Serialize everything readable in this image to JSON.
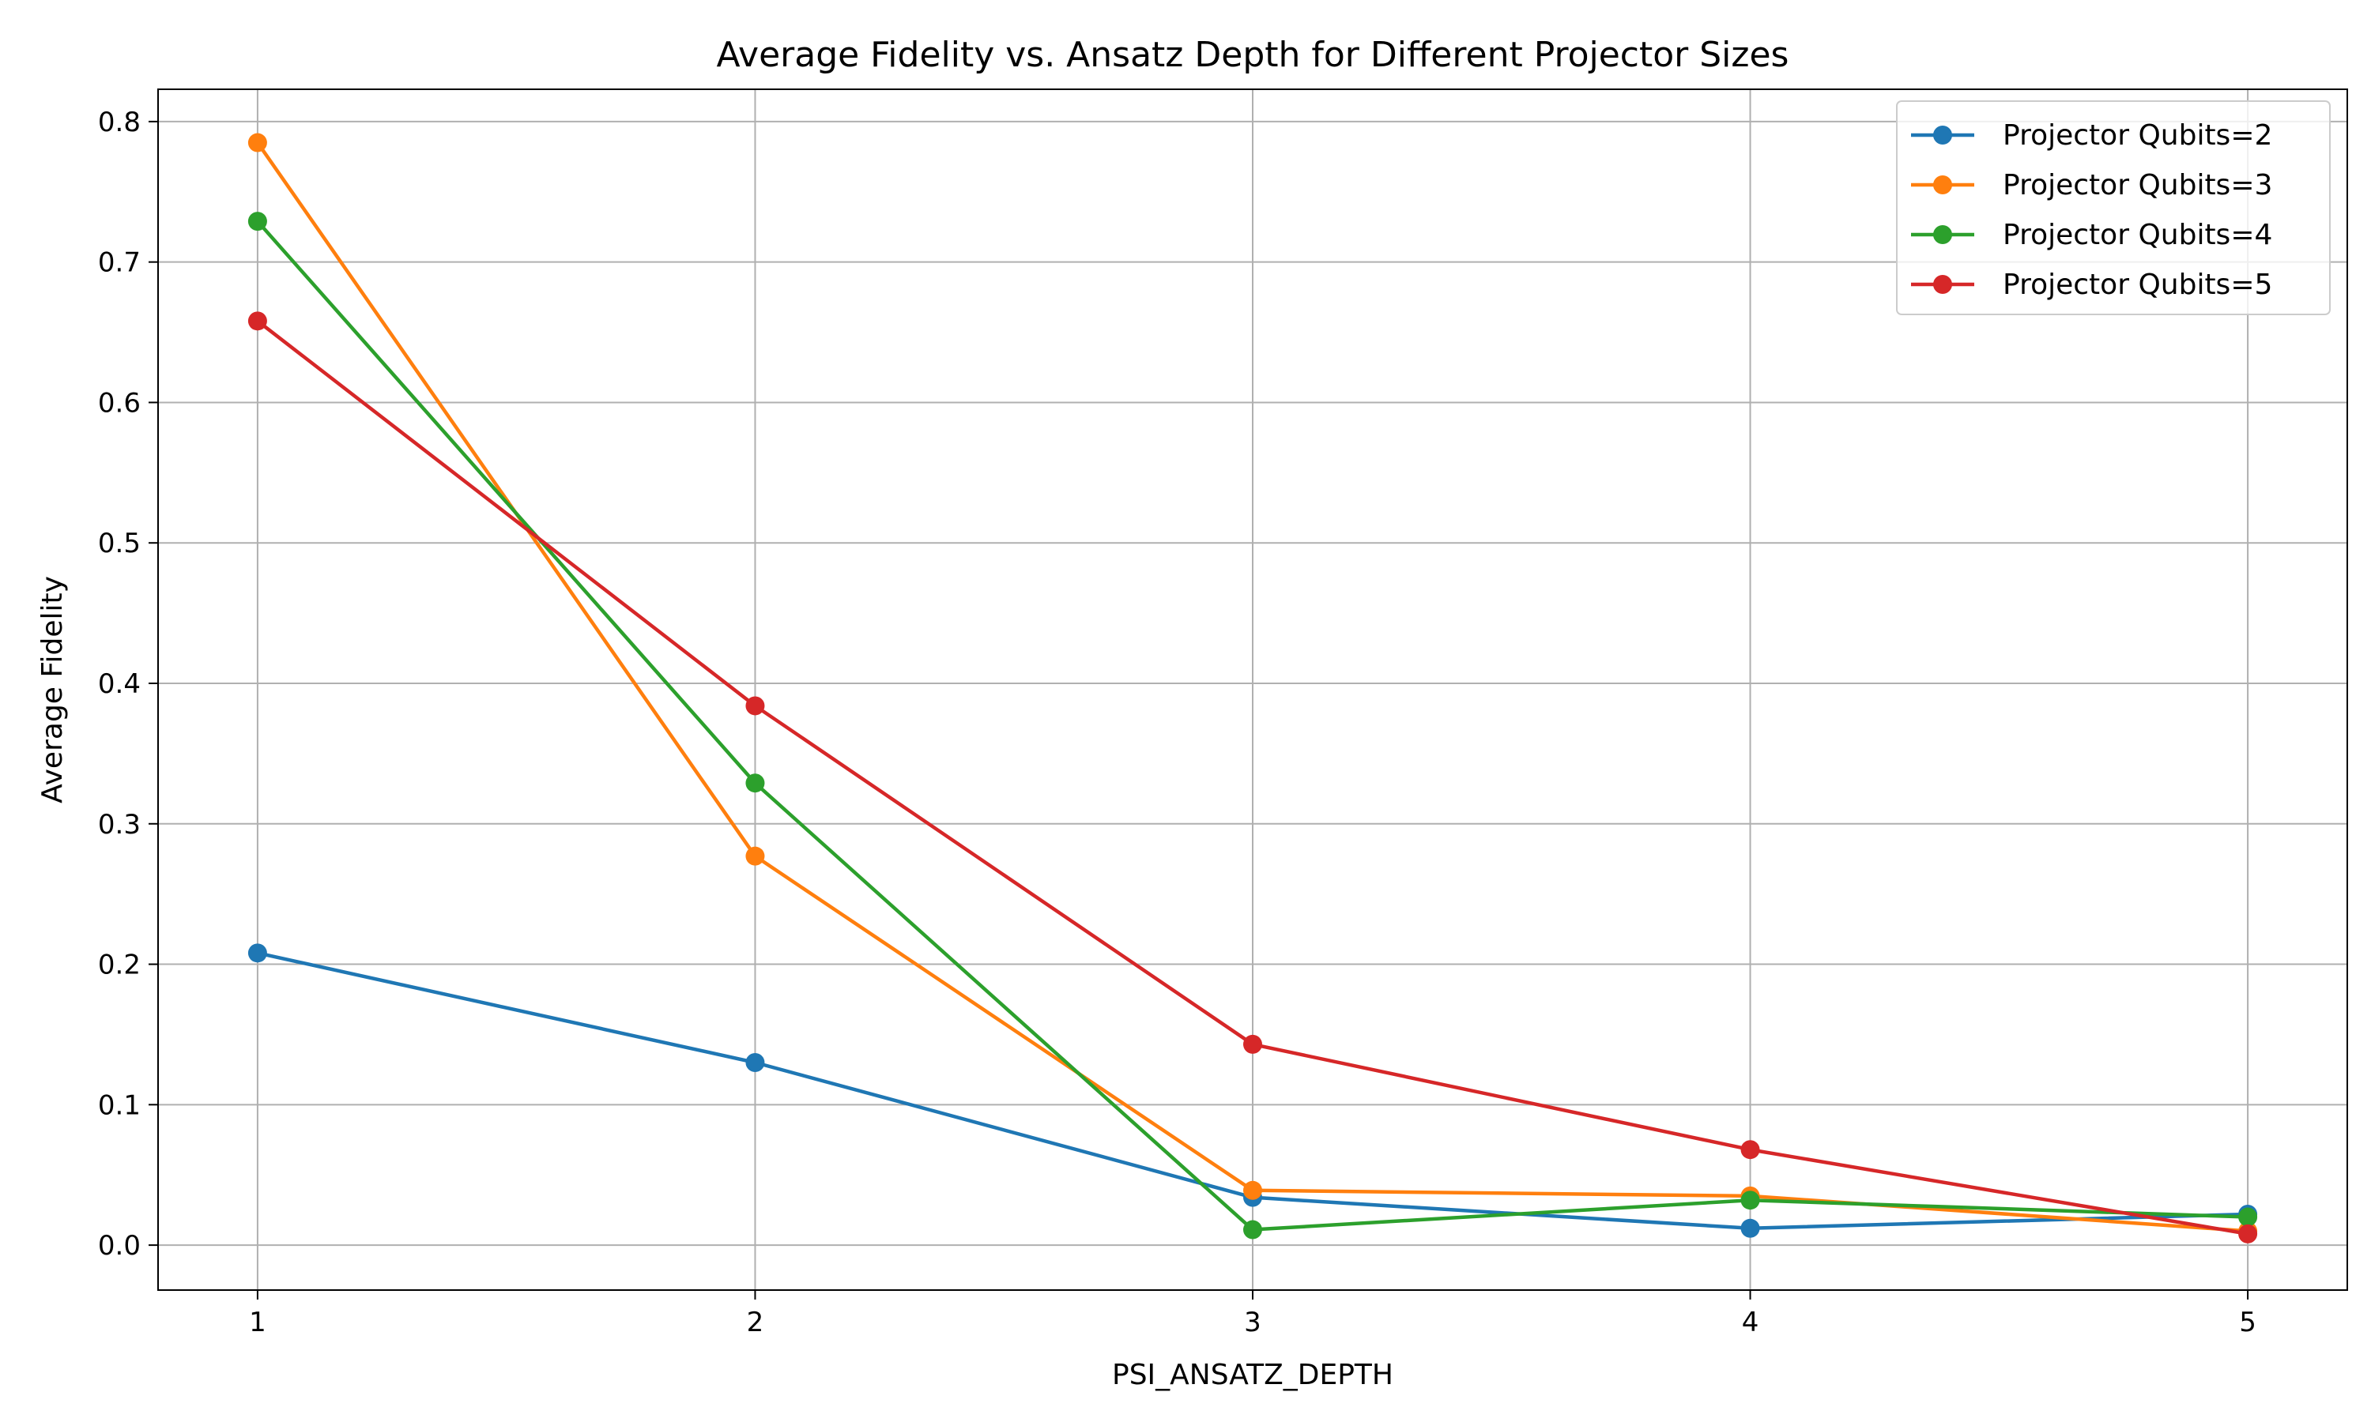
{
  "chart_data": {
    "type": "line",
    "title": "Average Fidelity vs. Ansatz Depth for Different Projector Sizes",
    "xlabel": "PSI_ANSATZ_DEPTH",
    "ylabel": "Average Fidelity",
    "x": [
      1,
      2,
      3,
      4,
      5
    ],
    "x_ticks": [
      "1",
      "2",
      "3",
      "4",
      "5"
    ],
    "xlim": [
      0.8,
      5.2
    ],
    "ylim": [
      -0.032,
      0.823
    ],
    "y_ticks": [
      "0.0",
      "0.1",
      "0.2",
      "0.3",
      "0.4",
      "0.5",
      "0.6",
      "0.7",
      "0.8"
    ],
    "grid": true,
    "legend_position": "top-right",
    "series": [
      {
        "name": "Projector Qubits=2",
        "color": "#1f77b4",
        "values": [
          0.208,
          0.13,
          0.034,
          0.012,
          0.022
        ]
      },
      {
        "name": "Projector Qubits=3",
        "color": "#ff7f0e",
        "values": [
          0.785,
          0.277,
          0.039,
          0.035,
          0.01
        ]
      },
      {
        "name": "Projector Qubits=4",
        "color": "#2ca02c",
        "values": [
          0.729,
          0.329,
          0.011,
          0.032,
          0.02
        ]
      },
      {
        "name": "Projector Qubits=5",
        "color": "#d62728",
        "values": [
          0.658,
          0.384,
          0.143,
          0.068,
          0.008
        ]
      }
    ]
  }
}
